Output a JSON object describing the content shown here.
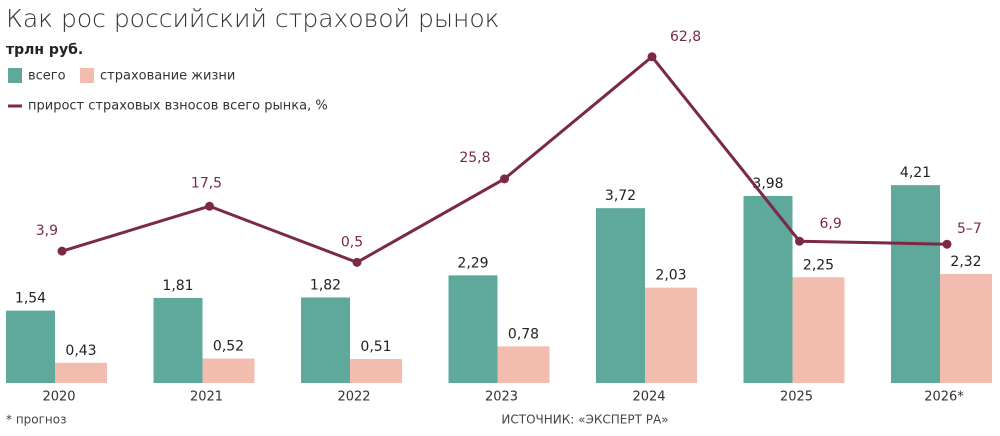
{
  "chart_data": {
    "type": "bar",
    "title": "Как рос российский страховой рынок",
    "subtitle": "трлн руб.",
    "categories": [
      "2020",
      "2021",
      "2022",
      "2023",
      "2024",
      "2025",
      "2026*"
    ],
    "series": [
      {
        "name": "всего",
        "type": "bar",
        "color": "#5ea89c",
        "values": [
          1.54,
          1.81,
          1.82,
          2.29,
          3.72,
          3.98,
          4.21
        ],
        "value_labels": [
          "1,54",
          "1,81",
          "1,82",
          "2,29",
          "3,72",
          "3,98",
          "4,21"
        ]
      },
      {
        "name": "страхование жизни",
        "type": "bar",
        "color": "#f2bdae",
        "values": [
          0.43,
          0.52,
          0.51,
          0.78,
          2.03,
          2.25,
          2.32
        ],
        "value_labels": [
          "0,43",
          "0,52",
          "0,51",
          "0,78",
          "2,03",
          "2,25",
          "2,32"
        ]
      },
      {
        "name": "прирост страховых взносов всего рынка, %",
        "type": "line",
        "axis": "y2",
        "color": "#7a2a45",
        "values": [
          3.9,
          17.5,
          0.5,
          25.8,
          62.8,
          6.9,
          6
        ],
        "value_labels": [
          "3,9",
          "17,5",
          "0,5",
          "25,8",
          "62,8",
          "6,9",
          "5–7"
        ]
      }
    ],
    "ylim": [
      0,
      5
    ],
    "y2lim": [
      0,
      80
    ],
    "footnote": "* прогноз",
    "source": "ИСТОЧНИК: «ЭКСПЕРТ РА»"
  }
}
